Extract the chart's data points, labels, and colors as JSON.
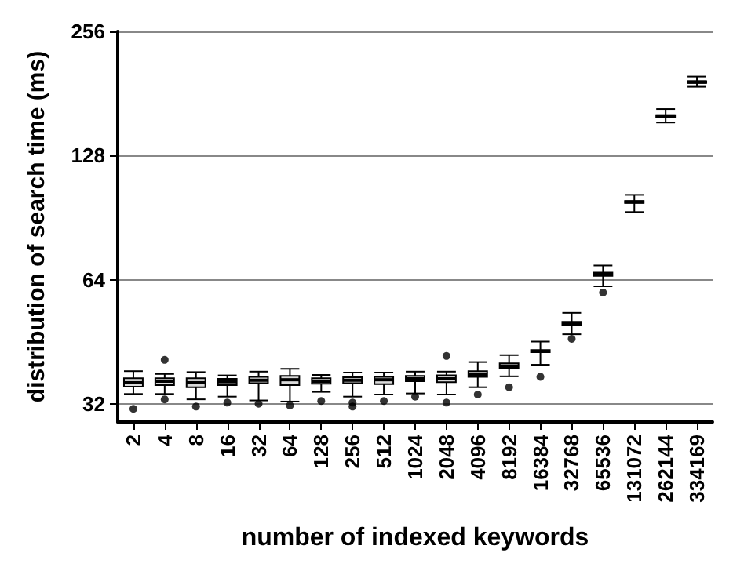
{
  "chart_data": {
    "type": "box",
    "xlabel": "number of indexed keywords",
    "ylabel": "distribution of search time (ms)",
    "categories": [
      "2",
      "4",
      "8",
      "16",
      "32",
      "64",
      "128",
      "256",
      "512",
      "1024",
      "2048",
      "4096",
      "8192",
      "16384",
      "32768",
      "65536",
      "131072",
      "262144",
      "334169"
    ],
    "log": true,
    "ylim": [
      29,
      256
    ],
    "yticks": [
      32,
      64,
      128,
      256
    ],
    "grid": "y",
    "series": [
      {
        "color": "#d9d9d9",
        "boxes": [
          {
            "low": 33.9,
            "q1": 35.3,
            "median": 36.1,
            "q3": 37.0,
            "high": 38.5,
            "outliers": [
              31.2
            ]
          },
          {
            "low": 33.9,
            "q1": 35.6,
            "median": 36.4,
            "q3": 37.0,
            "high": 37.9,
            "outliers": [
              41,
              32.9
            ]
          },
          {
            "low": 32.9,
            "q1": 35.2,
            "median": 36.1,
            "q3": 37.0,
            "high": 38.3,
            "outliers": [
              31.6
            ]
          },
          {
            "low": 33.4,
            "q1": 35.6,
            "median": 36.3,
            "q3": 36.9,
            "high": 37.6,
            "outliers": [
              32.3
            ]
          },
          {
            "low": 32.7,
            "q1": 36.0,
            "median": 36.6,
            "q3": 37.3,
            "high": 38.4,
            "outliers": [
              32.1
            ]
          },
          {
            "low": 32.5,
            "q1": 35.6,
            "median": 36.7,
            "q3": 37.5,
            "high": 39.0,
            "outliers": [
              31.8
            ]
          },
          {
            "low": 34.3,
            "q1": 35.9,
            "median": 36.4,
            "q3": 37.0,
            "high": 37.7,
            "outliers": [
              32.6
            ]
          },
          {
            "low": 33.4,
            "q1": 36.0,
            "median": 36.6,
            "q3": 37.2,
            "high": 38.2,
            "outliers": [
              32.3,
              31.6
            ]
          },
          {
            "low": 33.8,
            "q1": 35.8,
            "median": 36.7,
            "q3": 37.3,
            "high": 38.2,
            "outliers": [
              32.6
            ]
          },
          {
            "low": 34.0,
            "q1": 36.4,
            "median": 36.9,
            "q3": 37.5,
            "high": 38.4,
            "outliers": [
              33.4
            ]
          },
          {
            "low": 33.8,
            "q1": 36.2,
            "median": 36.9,
            "q3": 37.6,
            "high": 38.4,
            "outliers": [
              41.9,
              32.3
            ]
          },
          {
            "low": 35.2,
            "q1": 37.3,
            "median": 37.8,
            "q3": 38.5,
            "high": 40.5,
            "outliers": [
              33.8
            ]
          },
          {
            "low": 37.4,
            "q1": 39.2,
            "median": 39.6,
            "q3": 40.2,
            "high": 42.1,
            "outliers": [
              35.2
            ]
          },
          {
            "low": 39.9,
            "q1": 42.8,
            "median": 43.0,
            "q3": 43.3,
            "high": 45.4,
            "outliers": [
              37.3
            ]
          },
          {
            "low": 47.3,
            "q1": 49.9,
            "median": 50.3,
            "q3": 50.7,
            "high": 53.3,
            "outliers": [
              46.1
            ]
          },
          {
            "low": 61.8,
            "q1": 65.5,
            "median": 66.1,
            "q3": 66.7,
            "high": 69.4,
            "outliers": [
              59.7
            ]
          },
          {
            "low": 93.5,
            "q1": 98.4,
            "median": 98.9,
            "q3": 99.4,
            "high": 102.9
          },
          {
            "low": 154,
            "q1": 159,
            "median": 159.7,
            "q3": 160.5,
            "high": 166
          },
          {
            "low": 188,
            "q1": 192,
            "median": 193,
            "q3": 194,
            "high": 199
          }
        ]
      }
    ]
  }
}
